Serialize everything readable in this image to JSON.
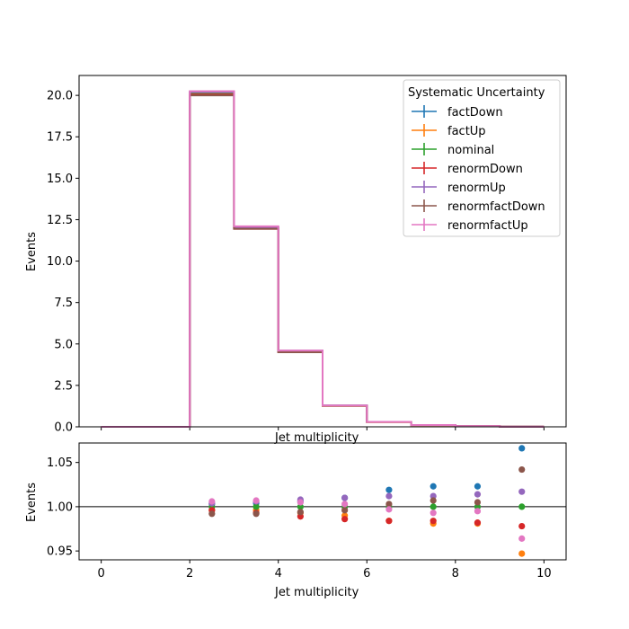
{
  "chart_data": [
    {
      "type": "step",
      "xlabel": "Jet multiplicity",
      "ylabel": "Events",
      "xlim": [
        -0.5,
        10.5
      ],
      "ylim": [
        0,
        21.2
      ],
      "bin_edges": [
        0,
        1,
        2,
        3,
        4,
        5,
        6,
        7,
        8,
        9,
        10
      ],
      "xticks": [
        "0",
        "2",
        "4",
        "6",
        "8",
        "10"
      ],
      "yticks": [
        "0.0",
        "2.5",
        "5.0",
        "7.5",
        "10.0",
        "12.5",
        "15.0",
        "17.5",
        "20.0"
      ],
      "legend": {
        "title": "Systematic Uncertainty",
        "placement": "top-right"
      },
      "series": [
        {
          "name": "factDown",
          "color": "#1f77b4",
          "values": [
            0,
            0,
            20.2,
            12.0,
            4.55,
            1.28,
            0.3,
            0.11,
            0.04,
            0.01
          ]
        },
        {
          "name": "factUp",
          "color": "#ff7f0e",
          "values": [
            0,
            0,
            20.1,
            12.0,
            4.55,
            1.27,
            0.29,
            0.1,
            0.04,
            0.01
          ]
        },
        {
          "name": "nominal",
          "color": "#2ca02c",
          "values": [
            0,
            0,
            20.15,
            12.0,
            4.55,
            1.28,
            0.3,
            0.11,
            0.04,
            0.01
          ]
        },
        {
          "name": "renormDown",
          "color": "#d62728",
          "values": [
            0,
            0,
            20.05,
            11.95,
            4.5,
            1.27,
            0.29,
            0.1,
            0.04,
            0.01
          ]
        },
        {
          "name": "renormUp",
          "color": "#9467bd",
          "values": [
            0,
            0,
            20.2,
            12.05,
            4.6,
            1.29,
            0.3,
            0.11,
            0.04,
            0.01
          ]
        },
        {
          "name": "renormfactDown",
          "color": "#8c564b",
          "values": [
            0,
            0,
            20.0,
            11.95,
            4.5,
            1.27,
            0.29,
            0.1,
            0.04,
            0.01
          ]
        },
        {
          "name": "renormfactUp",
          "color": "#e377c2",
          "values": [
            0,
            0,
            20.25,
            12.1,
            4.6,
            1.29,
            0.3,
            0.11,
            0.04,
            0.01
          ]
        }
      ]
    },
    {
      "type": "scatter",
      "xlabel": "Jet multiplicity",
      "ylabel": "Events",
      "xlim": [
        -0.5,
        10.5
      ],
      "ylim": [
        0.94,
        1.072
      ],
      "reference_line": 1.0,
      "x": [
        2.5,
        3.5,
        4.5,
        5.5,
        6.5,
        7.5,
        8.5,
        9.5
      ],
      "xticks": [
        "0",
        "2",
        "4",
        "6",
        "8",
        "10"
      ],
      "yticks": [
        "0.95",
        "1.00",
        "1.05"
      ],
      "series": [
        {
          "name": "factDown",
          "color": "#1f77b4",
          "values": [
            1.003,
            1.004,
            1.006,
            1.01,
            1.019,
            1.023,
            1.023,
            1.066
          ]
        },
        {
          "name": "factUp",
          "color": "#ff7f0e",
          "values": [
            0.996,
            0.996,
            0.993,
            0.99,
            0.984,
            0.981,
            0.981,
            0.947
          ]
        },
        {
          "name": "nominal",
          "color": "#2ca02c",
          "values": [
            1.0,
            1.0,
            1.0,
            1.0,
            1.0,
            1.0,
            1.0,
            1.0
          ]
        },
        {
          "name": "renormDown",
          "color": "#d62728",
          "values": [
            0.996,
            0.993,
            0.989,
            0.986,
            0.984,
            0.984,
            0.982,
            0.978
          ]
        },
        {
          "name": "renormUp",
          "color": "#9467bd",
          "values": [
            1.004,
            1.006,
            1.008,
            1.01,
            1.012,
            1.012,
            1.014,
            1.017
          ]
        },
        {
          "name": "renormfactDown",
          "color": "#8c564b",
          "values": [
            0.992,
            0.992,
            0.994,
            0.996,
            1.003,
            1.007,
            1.005,
            1.042
          ]
        },
        {
          "name": "renormfactUp",
          "color": "#e377c2",
          "values": [
            1.006,
            1.007,
            1.005,
            1.003,
            0.997,
            0.993,
            0.995,
            0.964
          ]
        }
      ]
    }
  ]
}
